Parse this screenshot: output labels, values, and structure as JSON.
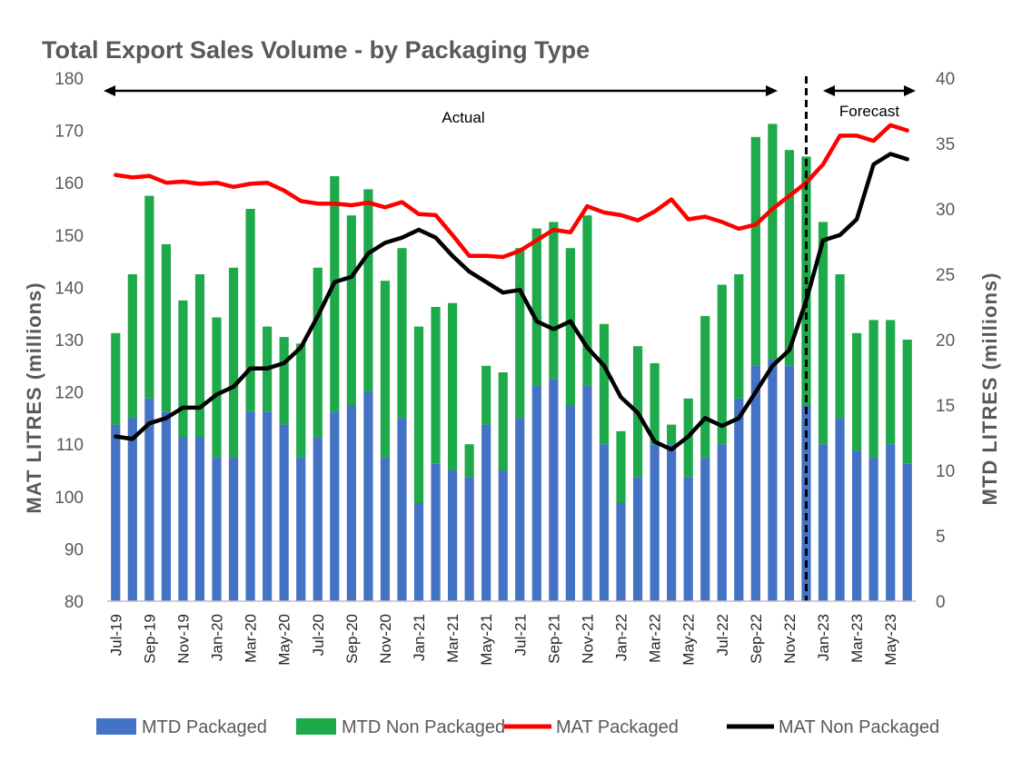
{
  "chart_data": {
    "type": "bar",
    "title": "Total Export Sales Volume - by Packaging Type",
    "y_left_label": "MAT LITRES (millions)",
    "y_right_label": "MTD LITRES (millions)",
    "y_left_range": [
      80,
      180
    ],
    "y_right_range": [
      0,
      40
    ],
    "y_left_ticks": [
      "80",
      "90",
      "100",
      "110",
      "120",
      "130",
      "140",
      "150",
      "160",
      "170",
      "180"
    ],
    "y_right_ticks": [
      "0",
      "5",
      "10",
      "15",
      "20",
      "25",
      "30",
      "35",
      "40"
    ],
    "categories": [
      "Jul-19",
      "Aug-19",
      "Sep-19",
      "Oct-19",
      "Nov-19",
      "Dec-19",
      "Jan-20",
      "Feb-20",
      "Mar-20",
      "Apr-20",
      "May-20",
      "Jun-20",
      "Jul-20",
      "Aug-20",
      "Sep-20",
      "Oct-20",
      "Nov-20",
      "Dec-20",
      "Jan-21",
      "Feb-21",
      "Mar-21",
      "Apr-21",
      "May-21",
      "Jun-21",
      "Jul-21",
      "Aug-21",
      "Sep-21",
      "Oct-21",
      "Nov-21",
      "Dec-21",
      "Jan-22",
      "Feb-22",
      "Mar-22",
      "Apr-22",
      "May-22",
      "Jun-22",
      "Jul-22",
      "Aug-22",
      "Sep-22",
      "Oct-22",
      "Nov-22",
      "Dec-22",
      "Jan-23",
      "Feb-23",
      "Mar-23",
      "Apr-23",
      "May-23",
      "Jun-23"
    ],
    "x_tick_labels": [
      "Jul-19",
      "Sep-19",
      "Nov-19",
      "Jan-20",
      "Mar-20",
      "May-20",
      "Jul-20",
      "Sep-20",
      "Nov-20",
      "Jan-21",
      "Mar-21",
      "May-21",
      "Jul-21",
      "Sep-21",
      "Nov-21",
      "Jan-22",
      "Mar-22",
      "May-22",
      "Jul-22",
      "Sep-22",
      "Nov-22",
      "Jan-23",
      "Mar-23",
      "May-23"
    ],
    "series": [
      {
        "name": "MTD Packaged",
        "kind": "stacked-bar",
        "axis": "right",
        "color": "#4472C4",
        "values": [
          13.5,
          14.0,
          15.5,
          14.5,
          12.5,
          12.5,
          11.0,
          11.0,
          14.5,
          14.5,
          13.5,
          11.0,
          12.5,
          14.5,
          15.0,
          16.0,
          11.0,
          14.0,
          7.5,
          10.5,
          10.0,
          9.5,
          13.5,
          10.0,
          14.0,
          16.5,
          17.0,
          15.0,
          16.5,
          12.0,
          7.5,
          9.5,
          12.0,
          12.0,
          9.5,
          11.0,
          12.0,
          15.5,
          18.0,
          18.5,
          18.0,
          15.0,
          12.0,
          14.0,
          11.5,
          11.0,
          12.0,
          10.5
        ]
      },
      {
        "name": "MTD Non Packaged",
        "kind": "stacked-bar",
        "axis": "right",
        "color": "#1EAA4A",
        "values": [
          7.0,
          11.0,
          15.5,
          12.8,
          10.5,
          12.5,
          10.7,
          14.5,
          15.5,
          6.5,
          6.7,
          8.7,
          13.0,
          18.0,
          14.5,
          15.5,
          13.5,
          13.0,
          13.5,
          12.0,
          12.8,
          2.5,
          4.5,
          7.5,
          13.0,
          12.0,
          12.0,
          12.0,
          13.0,
          9.2,
          5.5,
          10.0,
          6.2,
          1.5,
          6.0,
          10.8,
          12.2,
          9.5,
          17.5,
          18.0,
          16.5,
          19.0,
          17.0,
          11.0,
          9.0,
          10.5,
          9.5,
          9.5
        ]
      },
      {
        "name": "MAT Packaged",
        "kind": "line",
        "axis": "left",
        "color": "#FF0000",
        "values": [
          161.5,
          161.0,
          161.3,
          160.0,
          160.2,
          159.8,
          160.0,
          159.2,
          159.8,
          160.0,
          158.5,
          156.5,
          156.0,
          156.0,
          155.7,
          156.2,
          155.3,
          156.3,
          154.0,
          153.8,
          150.0,
          146.0,
          146.0,
          145.8,
          147.0,
          149.0,
          151.0,
          150.5,
          155.5,
          154.3,
          153.8,
          152.8,
          154.5,
          156.8,
          153.0,
          153.5,
          152.5,
          151.2,
          152.0,
          155.0,
          157.5,
          160.0,
          163.5,
          169.0,
          169.0,
          168.0,
          171.0,
          170.0
        ]
      },
      {
        "name": "MAT Non Packaged",
        "kind": "line",
        "axis": "left",
        "color": "#000000",
        "values": [
          111.5,
          111.0,
          114.0,
          115.0,
          117.0,
          117.0,
          119.5,
          121.0,
          124.5,
          124.5,
          125.5,
          128.5,
          134.5,
          141.0,
          142.0,
          146.5,
          148.5,
          149.5,
          151.0,
          149.5,
          146.0,
          143.0,
          141.0,
          139.0,
          139.5,
          133.5,
          132.0,
          133.5,
          128.5,
          125.0,
          119.0,
          116.0,
          110.5,
          109.0,
          111.5,
          115.0,
          113.5,
          115.0,
          120.0,
          125.0,
          128.0,
          137.5,
          149.0,
          150.0,
          153.0,
          163.5,
          165.5,
          164.5
        ]
      }
    ],
    "annotations": {
      "actual_label": "Actual",
      "forecast_label": "Forecast",
      "forecast_start_index": 42
    },
    "grid": false,
    "legend_position": "bottom"
  }
}
